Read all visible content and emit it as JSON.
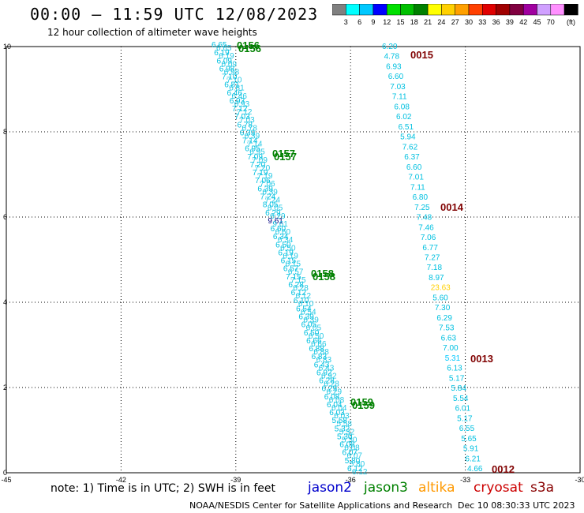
{
  "header": {
    "title": "00:00 – 11:59 UTC 12/08/2023",
    "subtitle": "12 hour collection of altimeter wave heights"
  },
  "legend": {
    "unit": "(ft)",
    "ticks": [
      "3",
      "6",
      "9",
      "12",
      "15",
      "18",
      "21",
      "24",
      "27",
      "30",
      "33",
      "36",
      "39",
      "42",
      "45",
      "70"
    ],
    "colors": [
      "#808080",
      "#00ffff",
      "#00c8ff",
      "#0000ff",
      "#00e000",
      "#00c000",
      "#008000",
      "#ffff00",
      "#ffd000",
      "#ffa000",
      "#ff4000",
      "#e00000",
      "#a00000",
      "#800040",
      "#a000a0",
      "#d0a0ff",
      "#ff90ff",
      "#000000"
    ]
  },
  "map": {
    "x_ticks": [
      "-45",
      "-42",
      "-39",
      "-36",
      "-33",
      "-30"
    ],
    "y_ticks": [
      "0",
      "2",
      "4",
      "6",
      "8",
      "10"
    ],
    "label_color": "#00c0e0"
  },
  "passes": [
    {
      "label": "0156",
      "color": "#008000"
    },
    {
      "label": "0157",
      "color": "#008000"
    },
    {
      "label": "0158",
      "color": "#008000"
    },
    {
      "label": "0159",
      "color": "#008000"
    },
    {
      "label": "0015",
      "color": "#800000"
    },
    {
      "label": "0014",
      "color": "#800000"
    },
    {
      "label": "0013",
      "color": "#800000"
    },
    {
      "label": "0012",
      "color": "#800000"
    }
  ],
  "east_track": [
    "6.20",
    "4.78",
    "6.93",
    "6.60",
    "7.03",
    "7.11",
    "6.08",
    "6.02",
    "6.51",
    "5.94",
    "7.62",
    "6.37",
    "6.60",
    "7.01",
    "7.11",
    "6.80",
    "7.25",
    "7.48",
    "7.46",
    "7.06",
    "6.77",
    "7.27",
    "7.18",
    "8.97",
    "23.63",
    "5.60",
    "7.30",
    "6.29",
    "7.53",
    "6.63",
    "7.00",
    "5.31",
    "6.13",
    "5.17",
    "5.84",
    "5.54",
    "6.01",
    "5.17",
    "6.55",
    "5.65",
    "5.91",
    "6.21",
    "4.66"
  ],
  "east_special": {
    "23.63": "#ffd000",
    "5.31": "#00c8ff"
  },
  "west_track": [
    "6.65",
    "6.19",
    "6.09",
    "6.98",
    "7.10",
    "6.81",
    "6.46",
    "6.93",
    "7.12",
    "7.03",
    "6.78",
    "6.39",
    "7.14",
    "6.95",
    "7.09",
    "7.20",
    "7.19",
    "7.06",
    "6.39",
    "7.24",
    "8.05",
    "6.29",
    "9.61",
    "6.60",
    "6.34",
    "6.50",
    "6.19",
    "6.15",
    "6.57",
    "7.15",
    "6.28",
    "6.12",
    "6.10",
    "6.54",
    "6.39",
    "6.05",
    "6.50",
    "6.66",
    "6.88",
    "6.83",
    "6.43",
    "6.92",
    "6.28",
    "6.29",
    "6.08",
    "6.04",
    "6.03",
    "5.58",
    "5.32",
    "5.30",
    "6.08",
    "6.07",
    "5.80",
    "6.12"
  ],
  "west_special": {
    "9.61": "#000080"
  },
  "footer": {
    "note": "note:  1) Time is in UTC; 2) SWH is in feet",
    "satellites": [
      {
        "name": "jason2",
        "color": "#0000cc"
      },
      {
        "name": "jason3",
        "color": "#008000"
      },
      {
        "name": "altika",
        "color": "#ff9900"
      },
      {
        "name": "cryosat",
        "color": "#cc0000"
      },
      {
        "name": "s3a",
        "color": "#880000"
      }
    ],
    "credit": "NOAA/NESDIS Center for Satellite Applications and Research",
    "timestamp": "Dec 10 08:30:33 UTC 2023"
  }
}
